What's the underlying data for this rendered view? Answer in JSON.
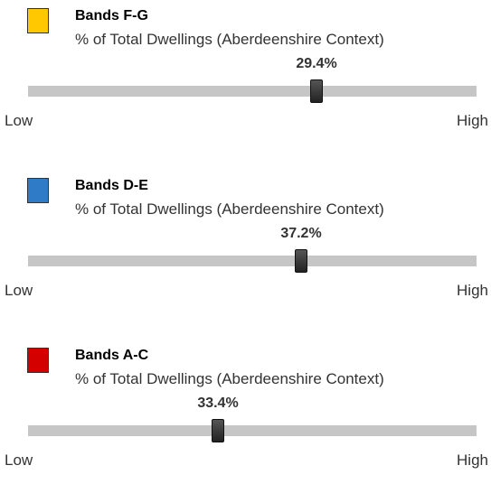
{
  "items": [
    {
      "title": "Bands F-G",
      "subtitle": "% of Total Dwellings (Aberdeenshire Context)",
      "value": "29.4%",
      "low": "Low",
      "high": "High"
    },
    {
      "title": "Bands D-E",
      "subtitle": "% of Total Dwellings (Aberdeenshire Context)",
      "value": "37.2%",
      "low": "Low",
      "high": "High"
    },
    {
      "title": "Bands A-C",
      "subtitle": "% of Total Dwellings (Aberdeenshire Context)",
      "value": "33.4%",
      "low": "Low",
      "high": "High"
    }
  ]
}
